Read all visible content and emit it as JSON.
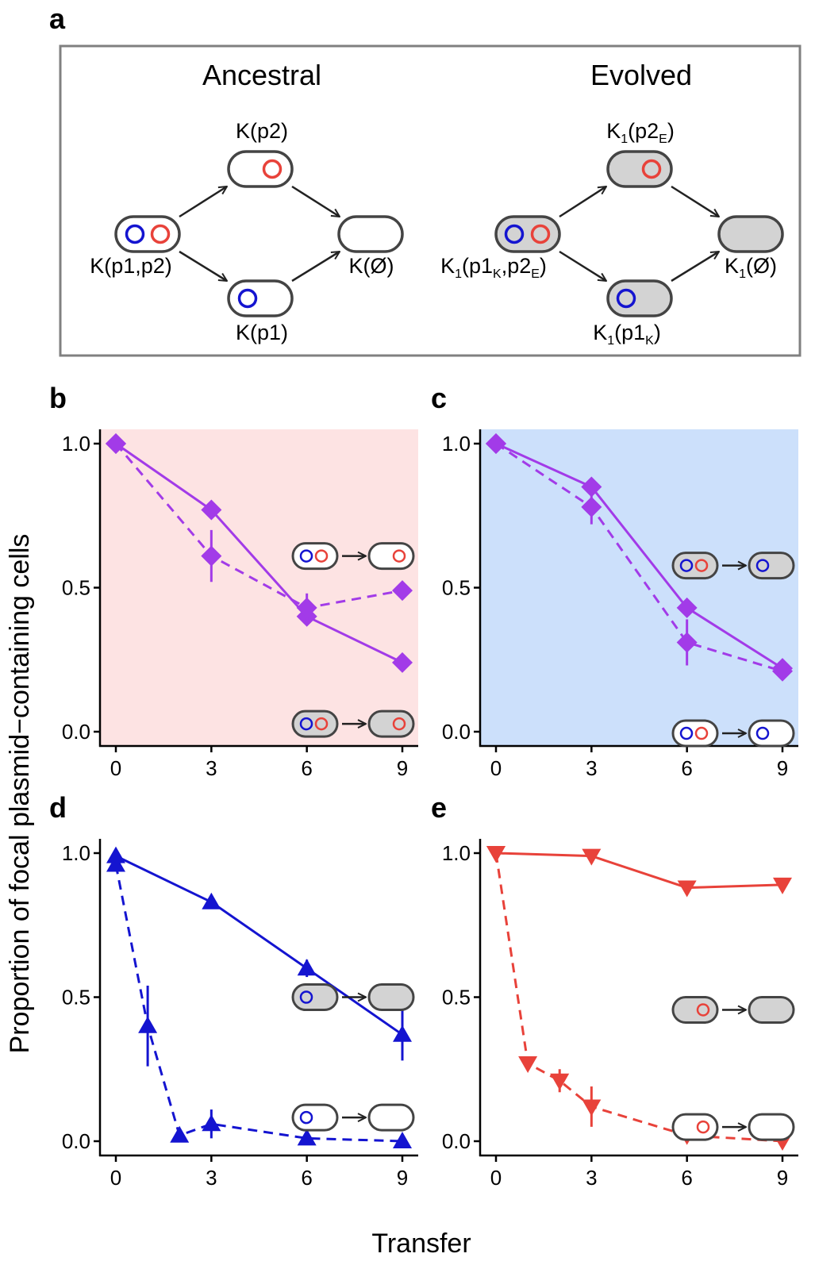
{
  "figure": {
    "ylabel": "Proportion of focal plasmid−containing cells",
    "xlabel": "Transfer",
    "colors": {
      "p1": "#1414d0",
      "p2": "#e8423a",
      "both": "#a23be8",
      "dark": "#444444",
      "grey_cell": "#d3d3d3"
    }
  },
  "scheme": {
    "letter": "a",
    "ancestral": {
      "title": "Ancestral",
      "label_both": "K(p1,p2)",
      "label_p2": "K(p2)",
      "label_p1": "K(p1)",
      "label_none": "K(Ø)"
    },
    "evolved": {
      "title": "Evolved",
      "both_pre": "K",
      "both_sub1": "1",
      "both_mid1": "(p1",
      "both_sub2": "K",
      "both_mid2": ",p2",
      "both_sub3": "E",
      "both_post": ")",
      "p2_pre": "K",
      "p2_sub1": "1",
      "p2_mid": "(p2",
      "p2_sub2": "E",
      "p2_post": ")",
      "p1_pre": "K",
      "p1_sub1": "1",
      "p1_mid": "(p1",
      "p1_sub2": "K",
      "p1_post": ")",
      "none_pre": "K",
      "none_sub1": "1",
      "none_post": "(Ø)"
    }
  },
  "chart_data": [
    {
      "panel": "b",
      "type": "line",
      "background": "#fde3e3",
      "xlim": [
        0,
        9
      ],
      "ylim": [
        0,
        1
      ],
      "xticks": [
        "0",
        "3",
        "6",
        "9"
      ],
      "yticks": [
        "0.0",
        "0.5",
        "1.0"
      ],
      "marker": "diamond",
      "color": "#a23be8",
      "series": [
        {
          "style": "solid",
          "x": [
            0,
            3,
            6,
            9
          ],
          "y": [
            1.0,
            0.77,
            0.4,
            0.24
          ],
          "err": [
            0,
            0.01,
            0.01,
            0.01
          ]
        },
        {
          "style": "dashed",
          "x": [
            0,
            3,
            6,
            9
          ],
          "y": [
            1.0,
            0.61,
            0.43,
            0.49
          ],
          "err": [
            0,
            0.09,
            0.05,
            0.01
          ]
        }
      ],
      "legend": [
        {
          "series": "dashed",
          "grey": false,
          "plasmids": [
            "p1",
            "p2"
          ],
          "after": [
            "p2"
          ]
        },
        {
          "series": "solid",
          "grey": true,
          "plasmids": [
            "p1",
            "p2"
          ],
          "after": [
            "p2"
          ]
        }
      ]
    },
    {
      "panel": "c",
      "type": "line",
      "background": "#cce0fb",
      "xlim": [
        0,
        9
      ],
      "ylim": [
        0,
        1
      ],
      "xticks": [
        "0",
        "3",
        "6",
        "9"
      ],
      "yticks": [
        "0.0",
        "0.5",
        "1.0"
      ],
      "marker": "diamond",
      "color": "#a23be8",
      "series": [
        {
          "style": "solid",
          "x": [
            0,
            3,
            6,
            9
          ],
          "y": [
            1.0,
            0.85,
            0.43,
            0.22
          ],
          "err": [
            0,
            0.01,
            0.01,
            0.01
          ]
        },
        {
          "style": "dashed",
          "x": [
            0,
            3,
            6,
            9
          ],
          "y": [
            1.0,
            0.78,
            0.31,
            0.21
          ],
          "err": [
            0,
            0.06,
            0.08,
            0.01
          ]
        }
      ],
      "legend": [
        {
          "series": "solid",
          "grey": true,
          "plasmids": [
            "p1",
            "p2"
          ],
          "after": [
            "p1"
          ]
        },
        {
          "series": "dashed",
          "grey": false,
          "plasmids": [
            "p1",
            "p2"
          ],
          "after": [
            "p1"
          ]
        }
      ]
    },
    {
      "panel": "d",
      "type": "line",
      "background": "#ffffff",
      "xlim": [
        0,
        9
      ],
      "ylim": [
        0,
        1
      ],
      "xticks": [
        "0",
        "3",
        "6",
        "9"
      ],
      "yticks": [
        "0.0",
        "0.5",
        "1.0"
      ],
      "marker": "triangle-up",
      "color": "#1414d0",
      "series": [
        {
          "style": "solid",
          "x": [
            0,
            3,
            6,
            9
          ],
          "y": [
            0.99,
            0.83,
            0.6,
            0.37
          ],
          "err": [
            0,
            0.01,
            0.03,
            0.09
          ]
        },
        {
          "style": "dashed",
          "x": [
            0,
            1,
            2,
            3,
            6,
            9
          ],
          "y": [
            0.96,
            0.4,
            0.02,
            0.06,
            0.01,
            0.0
          ],
          "err": [
            0.01,
            0.14,
            0.01,
            0.05,
            0.01,
            0.0
          ]
        }
      ],
      "legend": [
        {
          "series": "solid",
          "grey": true,
          "plasmids": [
            "p1"
          ],
          "after": []
        },
        {
          "series": "dashed",
          "grey": false,
          "plasmids": [
            "p1"
          ],
          "after": []
        }
      ]
    },
    {
      "panel": "e",
      "type": "line",
      "background": "#ffffff",
      "xlim": [
        0,
        9
      ],
      "ylim": [
        0,
        1
      ],
      "xticks": [
        "0",
        "3",
        "6",
        "9"
      ],
      "yticks": [
        "0.0",
        "0.5",
        "1.0"
      ],
      "marker": "triangle-down",
      "color": "#e8423a",
      "series": [
        {
          "style": "solid",
          "x": [
            0,
            3,
            6,
            9
          ],
          "y": [
            1.0,
            0.99,
            0.88,
            0.89
          ],
          "err": [
            0,
            0.01,
            0.01,
            0.01
          ]
        },
        {
          "style": "dashed",
          "x": [
            0,
            1,
            2,
            3,
            6,
            9
          ],
          "y": [
            1.0,
            0.27,
            0.21,
            0.12,
            0.02,
            0.0
          ],
          "err": [
            0,
            0.01,
            0.04,
            0.07,
            0.01,
            0.0
          ]
        }
      ],
      "legend": [
        {
          "series": "solid",
          "grey": true,
          "plasmids": [
            "p2"
          ],
          "after": []
        },
        {
          "series": "dashed",
          "grey": false,
          "plasmids": [
            "p2"
          ],
          "after": []
        }
      ]
    }
  ]
}
